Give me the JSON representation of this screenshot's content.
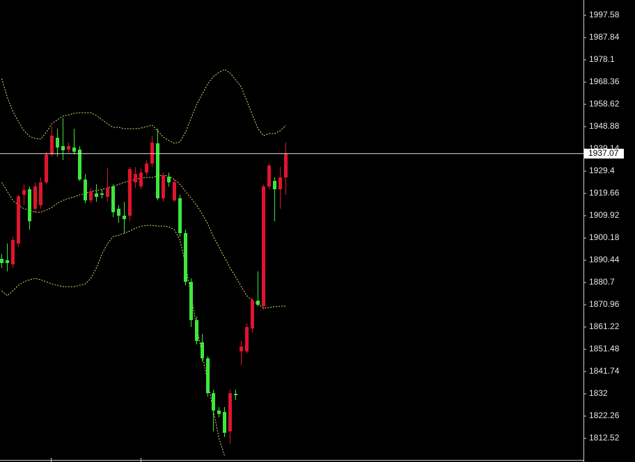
{
  "chart_data": {
    "type": "candlestick",
    "up_color": "#e0142e",
    "down_color": "#3ce83c",
    "ylim": [
      1803.39,
      2004.28
    ],
    "yticks": [
      1997.58,
      1987.84,
      1978.1,
      1968.36,
      1958.62,
      1948.88,
      1939.14,
      1929.4,
      1919.66,
      1909.92,
      1900.18,
      1890.44,
      1880.7,
      1870.96,
      1861.22,
      1851.48,
      1841.74,
      1832.0,
      1822.26,
      1812.52
    ],
    "current_price": 1937.07,
    "open": [
      1891.04,
      1890.44,
      1888.61,
      1897.75,
      1919.05,
      1921.49,
      1912.97,
      1914.49,
      1924.53,
      1936.71,
      1944.01,
      1940.36,
      1938.84,
      1939.75,
      1938.84,
      1925.75,
      1916.62,
      1919.66,
      1919.66,
      1918.14,
      1922.71,
      1912.97,
      1909.92,
      1909.92,
      1924.53,
      1922.71,
      1928.8,
      1932.76,
      1941.58,
      1917.53,
      1926.97,
      1916.62,
      1917.53,
      1902.31,
      1880.99,
      1864.26,
      1854.51,
      1847.51,
      1832.29,
      1824.68,
      1824.07,
      1815.55,
      1831.99,
      1850.55,
      1850.55,
      1860.6,
      1872.78,
      1870.35,
      1922.71,
      1925.14,
      1921.49,
      1926.66
    ],
    "high": [
      1893.18,
      1897.75,
      1900.79,
      1919.05,
      1923.62,
      1922.71,
      1924.53,
      1926.66,
      1937.92,
      1948.88,
      1947.97,
      1952.54,
      1941.88,
      1947.97,
      1940.36,
      1928.19,
      1922.1,
      1923.62,
      1921.49,
      1930.61,
      1923.62,
      1914.49,
      1916.01,
      1931.22,
      1931.22,
      1930.61,
      1934.27,
      1944.92,
      1947.97,
      1928.8,
      1928.8,
      1925.75,
      1919.05,
      1903.84,
      1882.52,
      1865.78,
      1858.17,
      1848.43,
      1833.82,
      1826.2,
      1826.2,
      1833.82,
      1833.82,
      1855.12,
      1862.73,
      1873.99,
      1885.57,
      1923.62,
      1932.76,
      1926.66,
      1931.22,
      1941.88
    ],
    "low": [
      1887.09,
      1885.57,
      1887.09,
      1896.23,
      1914.49,
      1903.84,
      1911.44,
      1912.97,
      1923.62,
      1935.79,
      1935.79,
      1934.27,
      1937.32,
      1936.71,
      1925.14,
      1915.4,
      1915.4,
      1916.01,
      1917.53,
      1916.01,
      1909.31,
      1906.88,
      1902.31,
      1907.49,
      1922.1,
      1921.49,
      1927.58,
      1931.22,
      1916.62,
      1916.01,
      1922.71,
      1916.01,
      1900.79,
      1879.47,
      1861.21,
      1853.6,
      1845.99,
      1830.77,
      1815.55,
      1821.64,
      1813.11,
      1810.07,
      1829.25,
      1844.47,
      1849.64,
      1858.77,
      1870.35,
      1868.82,
      1921.49,
      1907.49,
      1912.97,
      1919.05
    ],
    "close": [
      1889.22,
      1889.22,
      1899.27,
      1918.44,
      1921.18,
      1907.49,
      1922.71,
      1924.53,
      1936.71,
      1944.92,
      1939.75,
      1938.53,
      1940.36,
      1937.92,
      1925.75,
      1916.62,
      1920.58,
      1918.14,
      1919.05,
      1922.1,
      1911.44,
      1909.92,
      1908.4,
      1930.31,
      1928.19,
      1928.8,
      1932.76,
      1941.88,
      1917.53,
      1927.58,
      1924.53,
      1924.53,
      1902.31,
      1880.99,
      1864.26,
      1855.12,
      1847.51,
      1832.29,
      1824.68,
      1823.16,
      1814.94,
      1832.29,
      1831.38,
      1852.69,
      1861.21,
      1872.78,
      1870.96,
      1922.71,
      1931.83,
      1921.49,
      1926.66,
      1937.07
    ],
    "bands": {
      "color": "#e8e070",
      "upper": [
        1969.89,
        1961.67,
        1955.58,
        1951.01,
        1947.06,
        1944.62,
        1943.71,
        1943.4,
        1946.45,
        1950.1,
        1951.93,
        1953.45,
        1954.06,
        1954.67,
        1954.97,
        1954.97,
        1954.97,
        1953.75,
        1951.93,
        1950.1,
        1948.58,
        1948.58,
        1947.97,
        1947.97,
        1947.97,
        1948.27,
        1948.88,
        1949.49,
        1947.06,
        1944.32,
        1942.8,
        1941.58,
        1942.19,
        1946.45,
        1952.54,
        1958.62,
        1963.19,
        1967.75,
        1970.8,
        1972.62,
        1973.84,
        1972.32,
        1969.28,
        1966.23,
        1960.14,
        1954.06,
        1947.97,
        1944.93,
        1945.84,
        1945.84,
        1947.06,
        1949.49
      ],
      "middle": [
        1924.53,
        1920.58,
        1916.62,
        1914.49,
        1912.97,
        1912.36,
        1911.44,
        1911.44,
        1912.36,
        1913.57,
        1915.4,
        1916.62,
        1917.53,
        1918.14,
        1919.05,
        1919.66,
        1920.58,
        1920.88,
        1921.49,
        1922.1,
        1922.71,
        1923.62,
        1924.53,
        1925.14,
        1925.75,
        1926.36,
        1926.66,
        1926.66,
        1927.27,
        1927.58,
        1927.27,
        1925.75,
        1923.62,
        1920.58,
        1917.53,
        1914.49,
        1910.53,
        1906.27,
        1900.79,
        1896.23,
        1891.66,
        1887.09,
        1883.14,
        1878.88,
        1874.92,
        1872.79,
        1871.27,
        1869.44,
        1869.74,
        1870.05,
        1870.35,
        1870.35
      ],
      "lower": [
        1877.05,
        1874.92,
        1877.05,
        1879.48,
        1881.01,
        1881.92,
        1882.53,
        1881.92,
        1881.01,
        1880.09,
        1879.48,
        1878.88,
        1878.88,
        1878.88,
        1879.48,
        1880.09,
        1882.53,
        1887.09,
        1893.18,
        1897.75,
        1900.79,
        1901.4,
        1902.31,
        1903.23,
        1904.44,
        1905.36,
        1905.66,
        1905.66,
        1905.36,
        1905.36,
        1905.05,
        1903.83,
        1899.27,
        1888.62,
        1874.92,
        1861.22,
        1849.05,
        1836.87,
        1824.7,
        1812.52,
        1804.9,
        null,
        null,
        null,
        null,
        null,
        null,
        null,
        null,
        null,
        null,
        null
      ]
    }
  }
}
